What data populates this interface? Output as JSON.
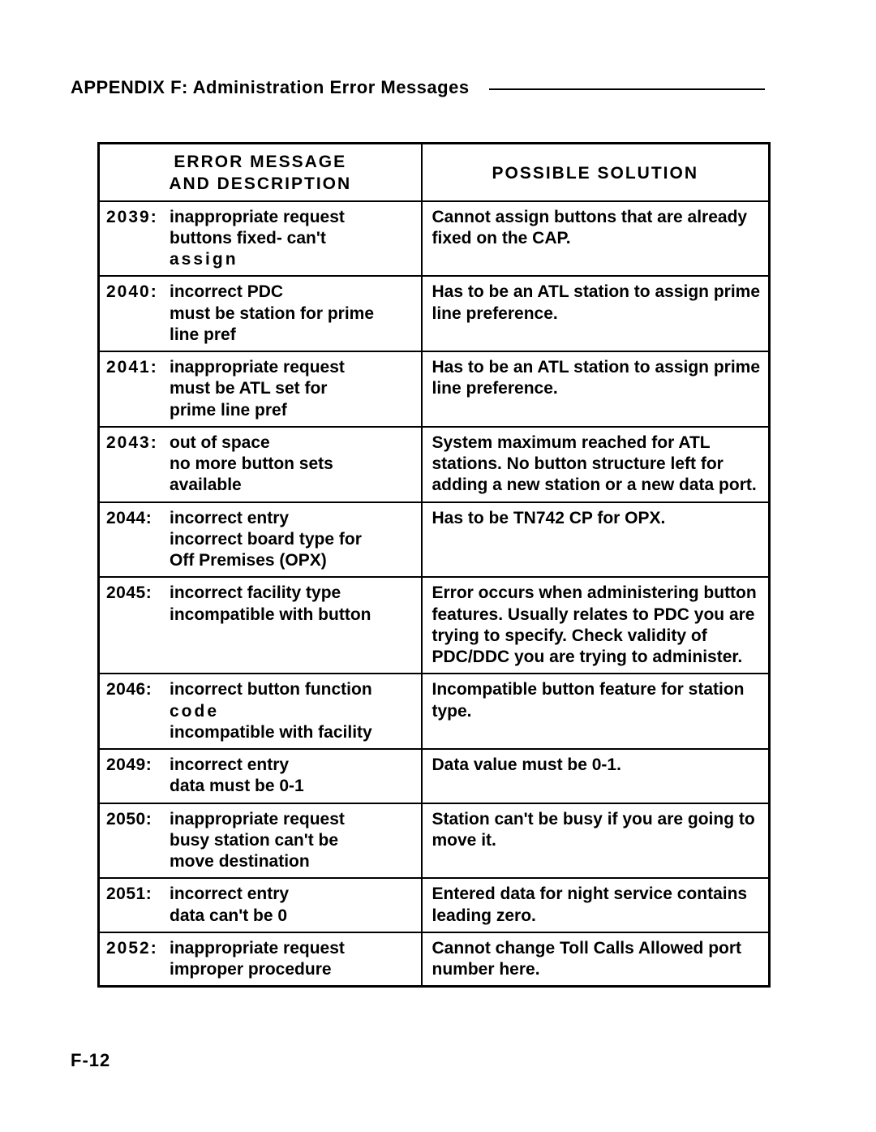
{
  "header": {
    "title": "APPENDIX F: Administration Error Messages"
  },
  "table": {
    "head": {
      "col1_l1": "ERROR MESSAGE",
      "col1_l2": "AND DESCRIPTION",
      "col2": "POSSIBLE SOLUTION"
    },
    "rows": [
      {
        "code": "2039:",
        "desc_l1": "inappropriate request",
        "desc_l2": "buttons fixed- can't",
        "desc_l3": "assign",
        "sol": "Cannot assign buttons that are already fixed on the CAP."
      },
      {
        "code": "2040:",
        "desc_l1": "incorrect PDC",
        "desc_l2": "must be station for prime",
        "desc_l3": "line pref",
        "sol": "Has to be an ATL station to assign prime line preference."
      },
      {
        "code": "2041:",
        "desc_l1": "inappropriate request",
        "desc_l2": "must be ATL set for",
        "desc_l3": "prime line pref",
        "sol": "Has to be an ATL station to assign prime line preference."
      },
      {
        "code": "2043:",
        "desc_l1": "out of space",
        "desc_l2": "no more button sets",
        "desc_l3": "available",
        "sol": "System maximum reached for ATL stations. No button structure left for adding a new station or a new data port."
      },
      {
        "code": "2044:",
        "desc_l1": "incorrect entry",
        "desc_l2": "incorrect board type for",
        "desc_l3": "Off Premises (OPX)",
        "sol": "Has to be TN742 CP for OPX."
      },
      {
        "code": "2045:",
        "desc_l1": "incorrect facility type",
        "desc_l2": "incompatible with button",
        "sol": "Error occurs when administering button features. Usually relates to PDC you are trying to specify. Check validity of PDC/DDC you are trying to administer."
      },
      {
        "code": "2046:",
        "desc_l1": "incorrect button function",
        "desc_l2": "code",
        "desc_l3": "incompatible with facility",
        "sol": "Incompatible button feature for station type."
      },
      {
        "code": "2049:",
        "desc_l1": "incorrect entry",
        "desc_l2": "data must be 0-1",
        "sol": "Data value must be 0-1."
      },
      {
        "code": "2050:",
        "desc_l1": "inappropriate request",
        "desc_l2": "busy station can't be",
        "desc_l3": "move destination",
        "sol": "Station can't be busy if you are going to move it."
      },
      {
        "code": "2051:",
        "desc_l1": "incorrect entry",
        "desc_l2": "data can't be 0",
        "sol": "Entered data for night service contains leading zero."
      },
      {
        "code": "2052:",
        "desc_l1": "inappropriate request",
        "desc_l2": "improper procedure",
        "sol": "Cannot change Toll Calls Allowed port number here."
      }
    ]
  },
  "page_number": "F-12"
}
